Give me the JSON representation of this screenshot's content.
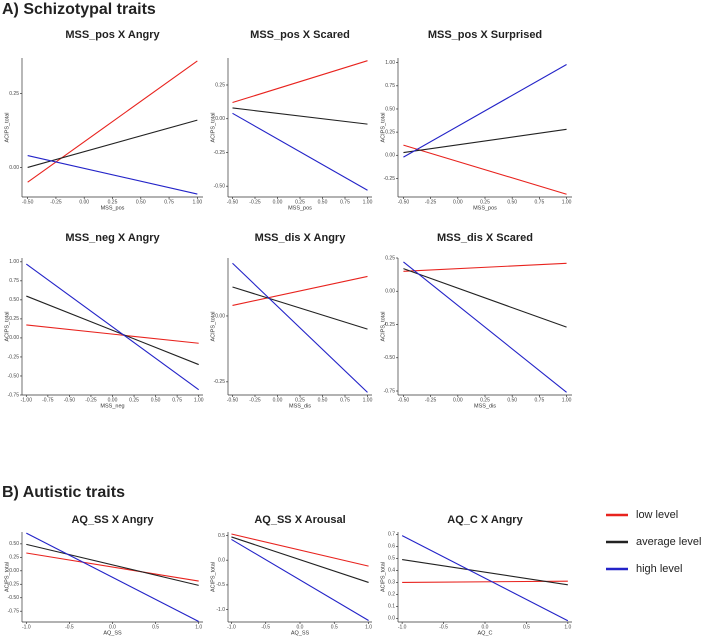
{
  "headings": [
    "A) Schizotypal traits",
    "B) Autistic traits"
  ],
  "chart_data": [
    {
      "type": "line",
      "title": "MSS_pos X Angry",
      "xlabel": "MSS_pos",
      "ylabel": "ACIPS_total",
      "x": [
        -0.5,
        1
      ],
      "series": [
        {
          "name": "low level",
          "color": "#e8231e",
          "values": [
            -0.05,
            0.36
          ]
        },
        {
          "name": "average level",
          "color": "#222222",
          "values": [
            0.0,
            0.16
          ]
        },
        {
          "name": "high level",
          "color": "#2323c8",
          "values": [
            0.04,
            -0.09
          ]
        }
      ],
      "xlim": [
        -0.55,
        1.05
      ],
      "ylim": [
        -0.1,
        0.37
      ],
      "xticks": [
        {
          "value": -0.5,
          "label": "-0.50"
        },
        {
          "value": -0.25,
          "label": "-0.25"
        },
        {
          "value": 0,
          "label": "0.00"
        },
        {
          "value": 0.25,
          "label": "0.25"
        },
        {
          "value": 0.5,
          "label": "0.50"
        },
        {
          "value": 0.75,
          "label": "0.75"
        },
        {
          "value": 1,
          "label": "1.00"
        }
      ],
      "yticks": [
        {
          "value": 0,
          "label": "0.00"
        },
        {
          "value": 0.25,
          "label": "0.25"
        }
      ]
    },
    {
      "type": "line",
      "title": "MSS_pos X Scared",
      "xlabel": "MSS_pos",
      "ylabel": "ACIPS_total",
      "x": [
        -0.5,
        1
      ],
      "series": [
        {
          "name": "low level",
          "color": "#e8231e",
          "values": [
            0.12,
            0.43
          ]
        },
        {
          "name": "average level",
          "color": "#222222",
          "values": [
            0.08,
            -0.04
          ]
        },
        {
          "name": "high level",
          "color": "#2323c8",
          "values": [
            0.04,
            -0.53
          ]
        }
      ],
      "xlim": [
        -0.55,
        1.05
      ],
      "ylim": [
        -0.58,
        0.45
      ],
      "xticks": [
        {
          "value": -0.5,
          "label": "-0.50"
        },
        {
          "value": -0.25,
          "label": "-0.25"
        },
        {
          "value": 0,
          "label": "0.00"
        },
        {
          "value": 0.25,
          "label": "0.25"
        },
        {
          "value": 0.5,
          "label": "0.50"
        },
        {
          "value": 0.75,
          "label": "0.75"
        },
        {
          "value": 1,
          "label": "1.00"
        }
      ],
      "yticks": [
        {
          "value": -0.5,
          "label": "-0.50"
        },
        {
          "value": -0.25,
          "label": "-0.25"
        },
        {
          "value": 0,
          "label": "0.00"
        },
        {
          "value": 0.25,
          "label": "0.25"
        }
      ]
    },
    {
      "type": "line",
      "title": "MSS_pos X Surprised",
      "xlabel": "MSS_pos",
      "ylabel": "ACIPS_total",
      "x": [
        -0.5,
        1
      ],
      "series": [
        {
          "name": "low level",
          "color": "#e8231e",
          "values": [
            0.11,
            -0.42
          ]
        },
        {
          "name": "average level",
          "color": "#222222",
          "values": [
            0.03,
            0.28
          ]
        },
        {
          "name": "high level",
          "color": "#2323c8",
          "values": [
            -0.02,
            0.98
          ]
        }
      ],
      "xlim": [
        -0.55,
        1.05
      ],
      "ylim": [
        -0.45,
        1.05
      ],
      "xticks": [
        {
          "value": -0.5,
          "label": "-0.50"
        },
        {
          "value": -0.25,
          "label": "-0.25"
        },
        {
          "value": 0,
          "label": "0.00"
        },
        {
          "value": 0.25,
          "label": "0.25"
        },
        {
          "value": 0.5,
          "label": "0.50"
        },
        {
          "value": 0.75,
          "label": "0.75"
        },
        {
          "value": 1,
          "label": "1.00"
        }
      ],
      "yticks": [
        {
          "value": -0.25,
          "label": "-0.25"
        },
        {
          "value": 0,
          "label": "0.00"
        },
        {
          "value": 0.25,
          "label": "0.25"
        },
        {
          "value": 0.5,
          "label": "0.50"
        },
        {
          "value": 0.75,
          "label": "0.75"
        },
        {
          "value": 1,
          "label": "1.00"
        }
      ]
    },
    {
      "type": "line",
      "title": "MSS_neg X Angry",
      "xlabel": "MSS_neg",
      "ylabel": "ACIPS_total",
      "x": [
        -1,
        1
      ],
      "series": [
        {
          "name": "low level",
          "color": "#e8231e",
          "values": [
            0.17,
            -0.07
          ]
        },
        {
          "name": "average level",
          "color": "#222222",
          "values": [
            0.55,
            -0.35
          ]
        },
        {
          "name": "high level",
          "color": "#2323c8",
          "values": [
            0.97,
            -0.68
          ]
        }
      ],
      "xlim": [
        -1.05,
        1.05
      ],
      "ylim": [
        -0.75,
        1.05
      ],
      "xticks": [
        {
          "value": -1,
          "label": "-1.00"
        },
        {
          "value": -0.75,
          "label": "-0.75"
        },
        {
          "value": -0.5,
          "label": "-0.50"
        },
        {
          "value": -0.25,
          "label": "-0.25"
        },
        {
          "value": 0,
          "label": "0.00"
        },
        {
          "value": 0.25,
          "label": "0.25"
        },
        {
          "value": 0.5,
          "label": "0.50"
        },
        {
          "value": 0.75,
          "label": "0.75"
        },
        {
          "value": 1,
          "label": "1.00"
        }
      ],
      "yticks": [
        {
          "value": -0.75,
          "label": "-0.75"
        },
        {
          "value": -0.5,
          "label": "-0.50"
        },
        {
          "value": -0.25,
          "label": "-0.25"
        },
        {
          "value": 0,
          "label": "0.00"
        },
        {
          "value": 0.25,
          "label": "0.25"
        },
        {
          "value": 0.5,
          "label": "0.50"
        },
        {
          "value": 0.75,
          "label": "0.75"
        },
        {
          "value": 1,
          "label": "1.00"
        }
      ]
    },
    {
      "type": "line",
      "title": "MSS_dis X Angry",
      "xlabel": "MSS_dis",
      "ylabel": "ACIPS_total",
      "x": [
        -0.5,
        1
      ],
      "series": [
        {
          "name": "low level",
          "color": "#e8231e",
          "values": [
            0.04,
            0.15
          ]
        },
        {
          "name": "average level",
          "color": "#222222",
          "values": [
            0.11,
            -0.05
          ]
        },
        {
          "name": "high level",
          "color": "#2323c8",
          "values": [
            0.2,
            -0.29
          ]
        }
      ],
      "xlim": [
        -0.55,
        1.05
      ],
      "ylim": [
        -0.3,
        0.22
      ],
      "xticks": [
        {
          "value": -0.5,
          "label": "-0.50"
        },
        {
          "value": -0.25,
          "label": "-0.25"
        },
        {
          "value": 0,
          "label": "0.00"
        },
        {
          "value": 0.25,
          "label": "0.25"
        },
        {
          "value": 0.5,
          "label": "0.50"
        },
        {
          "value": 0.75,
          "label": "0.75"
        },
        {
          "value": 1,
          "label": "1.00"
        }
      ],
      "yticks": [
        {
          "value": -0.25,
          "label": "-0.25"
        },
        {
          "value": 0,
          "label": "0.00"
        }
      ]
    },
    {
      "type": "line",
      "title": "MSS_dis X Scared",
      "xlabel": "MSS_dis",
      "ylabel": "ACIPS_total",
      "x": [
        -0.5,
        1
      ],
      "series": [
        {
          "name": "low level",
          "color": "#e8231e",
          "values": [
            0.15,
            0.21
          ]
        },
        {
          "name": "average level",
          "color": "#222222",
          "values": [
            0.17,
            -0.27
          ]
        },
        {
          "name": "high level",
          "color": "#2323c8",
          "values": [
            0.22,
            -0.76
          ]
        }
      ],
      "xlim": [
        -0.55,
        1.05
      ],
      "ylim": [
        -0.78,
        0.25
      ],
      "xticks": [
        {
          "value": -0.5,
          "label": "-0.50"
        },
        {
          "value": -0.25,
          "label": "-0.25"
        },
        {
          "value": 0,
          "label": "0.00"
        },
        {
          "value": 0.25,
          "label": "0.25"
        },
        {
          "value": 0.5,
          "label": "0.50"
        },
        {
          "value": 0.75,
          "label": "0.75"
        },
        {
          "value": 1,
          "label": "1.00"
        }
      ],
      "yticks": [
        {
          "value": -0.75,
          "label": "-0.75"
        },
        {
          "value": -0.5,
          "label": "-0.50"
        },
        {
          "value": -0.25,
          "label": "-0.25"
        },
        {
          "value": 0,
          "label": "0.00"
        },
        {
          "value": 0.25,
          "label": "0.25"
        }
      ]
    },
    {
      "type": "line",
      "title": "AQ_SS X Angry",
      "xlabel": "AQ_SS",
      "ylabel": "ACIPS_total",
      "x": [
        -1,
        1
      ],
      "series": [
        {
          "name": "low level",
          "color": "#e8231e",
          "values": [
            0.33,
            -0.19
          ]
        },
        {
          "name": "average level",
          "color": "#222222",
          "values": [
            0.49,
            -0.27
          ]
        },
        {
          "name": "high level",
          "color": "#2323c8",
          "values": [
            0.7,
            -0.94
          ]
        }
      ],
      "xlim": [
        -1.05,
        1.05
      ],
      "ylim": [
        -0.95,
        0.72
      ],
      "xticks": [
        {
          "value": -1,
          "label": "-1.0"
        },
        {
          "value": -0.5,
          "label": "-0.5"
        },
        {
          "value": 0,
          "label": "0.0"
        },
        {
          "value": 0.5,
          "label": "0.5"
        },
        {
          "value": 1,
          "label": "1.0"
        }
      ],
      "yticks": [
        {
          "value": -0.75,
          "label": "-0.75"
        },
        {
          "value": -0.5,
          "label": "-0.50"
        },
        {
          "value": -0.25,
          "label": "-0.25"
        },
        {
          "value": 0,
          "label": "0.00"
        },
        {
          "value": 0.25,
          "label": "0.25"
        },
        {
          "value": 0.5,
          "label": "0.50"
        }
      ]
    },
    {
      "type": "line",
      "title": "AQ_SS X Arousal",
      "xlabel": "AQ_SS",
      "ylabel": "ACIPS_total",
      "x": [
        -1,
        1
      ],
      "series": [
        {
          "name": "low level",
          "color": "#e8231e",
          "values": [
            0.53,
            -0.12
          ]
        },
        {
          "name": "average level",
          "color": "#222222",
          "values": [
            0.47,
            -0.45
          ]
        },
        {
          "name": "high level",
          "color": "#2323c8",
          "values": [
            0.42,
            -1.22
          ]
        }
      ],
      "xlim": [
        -1.05,
        1.05
      ],
      "ylim": [
        -1.25,
        0.57
      ],
      "xticks": [
        {
          "value": -1,
          "label": "-1.0"
        },
        {
          "value": -0.5,
          "label": "-0.5"
        },
        {
          "value": 0,
          "label": "0.0"
        },
        {
          "value": 0.5,
          "label": "0.5"
        },
        {
          "value": 1,
          "label": "1.0"
        }
      ],
      "yticks": [
        {
          "value": -1,
          "label": "-1.0"
        },
        {
          "value": -0.5,
          "label": "-0.5"
        },
        {
          "value": 0,
          "label": "0.0"
        },
        {
          "value": 0.5,
          "label": "0.5"
        }
      ]
    },
    {
      "type": "line",
      "title": "AQ_C  X Angry",
      "xlabel": "AQ_C",
      "ylabel": "ACIPS_total",
      "x": [
        -1,
        1
      ],
      "series": [
        {
          "name": "low level",
          "color": "#e8231e",
          "values": [
            0.3,
            0.31
          ]
        },
        {
          "name": "average level",
          "color": "#222222",
          "values": [
            0.49,
            0.28
          ]
        },
        {
          "name": "high level",
          "color": "#2323c8",
          "values": [
            0.69,
            -0.02
          ]
        }
      ],
      "xlim": [
        -1.05,
        1.05
      ],
      "ylim": [
        -0.03,
        0.72
      ],
      "xticks": [
        {
          "value": -1,
          "label": "-1.0"
        },
        {
          "value": -0.5,
          "label": "-0.5"
        },
        {
          "value": 0,
          "label": "0.0"
        },
        {
          "value": 0.5,
          "label": "0.5"
        },
        {
          "value": 1,
          "label": "1.0"
        }
      ],
      "yticks": [
        {
          "value": 0,
          "label": "0.0"
        },
        0.1,
        0.2,
        0.3,
        0.4,
        0.5,
        0.6,
        0.7
      ]
    }
  ]
}
